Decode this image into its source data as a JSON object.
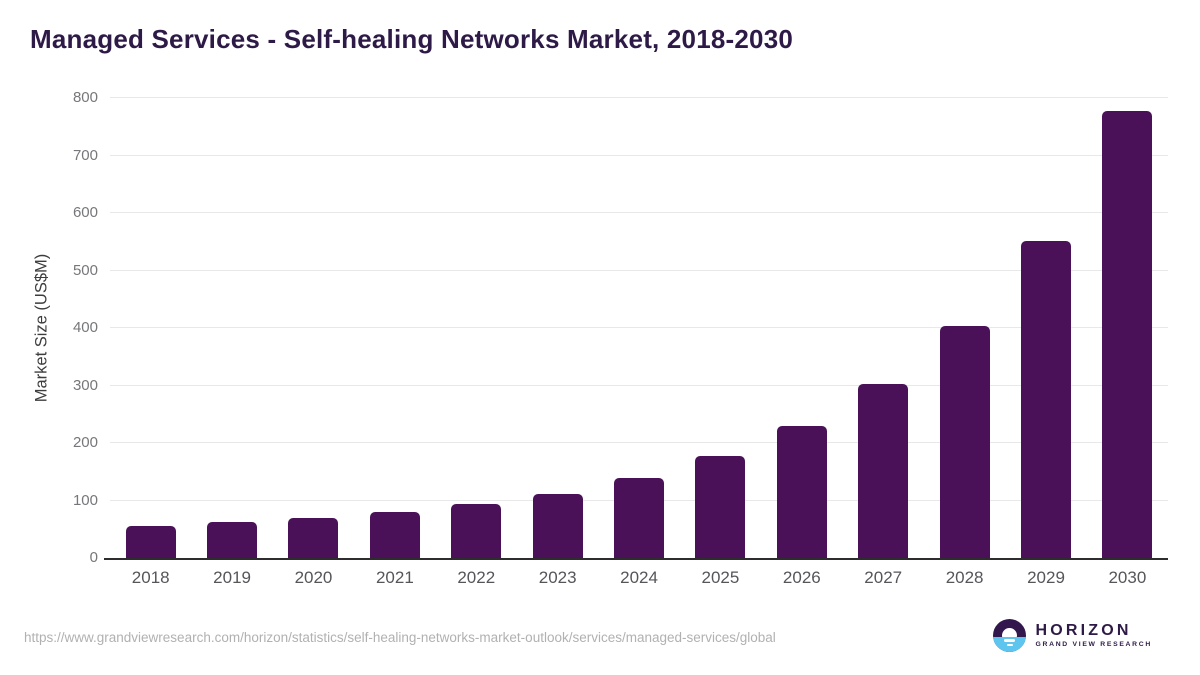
{
  "title": "Managed Services - Self-healing Networks Market, 2018-2030",
  "chart_data": {
    "type": "bar",
    "title": "Managed Services - Self-healing Networks Market, 2018-2030",
    "categories": [
      "2018",
      "2019",
      "2020",
      "2021",
      "2022",
      "2023",
      "2024",
      "2025",
      "2026",
      "2027",
      "2028",
      "2029",
      "2030"
    ],
    "values": [
      56,
      62,
      70,
      80,
      94,
      112,
      140,
      178,
      230,
      302,
      404,
      552,
      778
    ],
    "xlabel": "",
    "ylabel": "Market Size (US$M)",
    "ylim": [
      0,
      800
    ],
    "ytick_step": 100,
    "yticks": [
      0,
      100,
      200,
      300,
      400,
      500,
      600,
      700,
      800
    ],
    "grid": "horizontal",
    "legend": false,
    "bar_color": "#4a1158"
  },
  "footer": {
    "source_url": "https://www.grandviewresearch.com/horizon/statistics/self-healing-networks-market-outlook/services/managed-services/global",
    "logo": {
      "brand": "HORIZON",
      "subbrand": "GRAND VIEW RESEARCH"
    }
  },
  "colors": {
    "bar": "#4a1158",
    "title": "#2e1a47",
    "grid": "#e8e8e8",
    "axis": "#2d2d2d",
    "ytick": "#76777a",
    "xtick": "#55565a",
    "ylabel": "#3d3d3d",
    "source": "#b1b1b1",
    "logo_purple": "#32174d",
    "logo_blue": "#5ec5ee"
  }
}
